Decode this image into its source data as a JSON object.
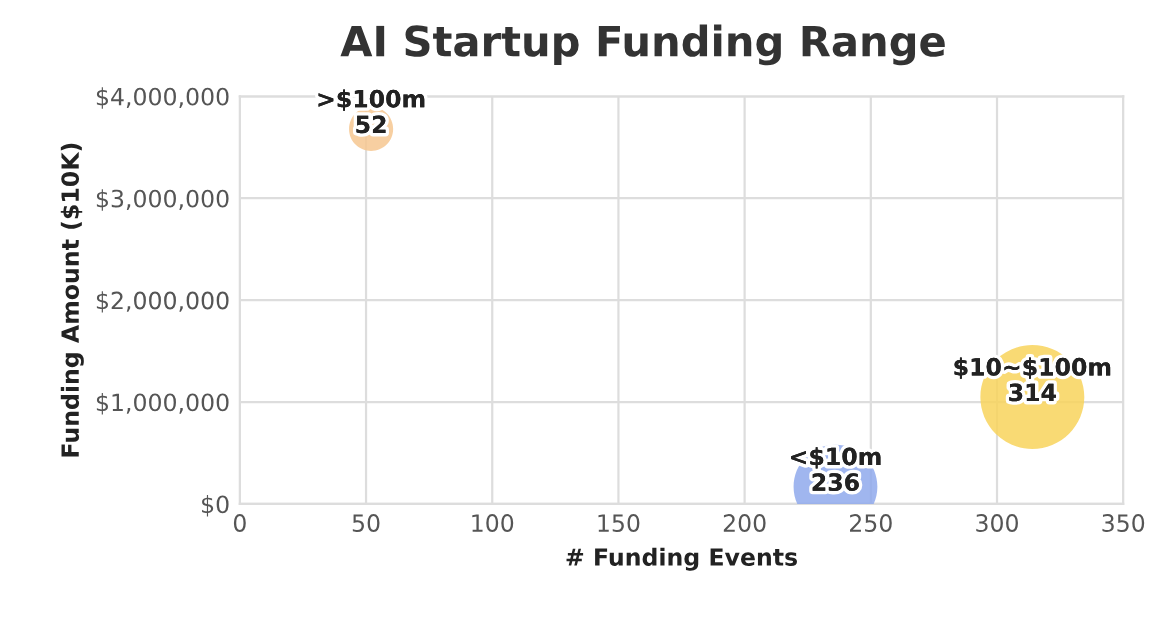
{
  "chart_data": {
    "type": "bubble",
    "title": "AI Startup Funding Range",
    "xlabel": "# Funding Events",
    "ylabel": "Funding Amount ($10K)",
    "series": [
      {
        "name": ">$100m",
        "color": "#f6c790",
        "x": [
          52
        ],
        "values": [
          3680000
        ],
        "sizes": [
          0.18
        ]
      },
      {
        "name": "<$10m",
        "color": "#8fa9ec",
        "x": [
          236
        ],
        "values": [
          170000
        ],
        "sizes": [
          0.65
        ]
      },
      {
        "name": "$10~$100m",
        "color": "#f8d35c",
        "x": [
          314
        ],
        "values": [
          1050000
        ],
        "sizes": [
          1
        ]
      }
    ],
    "annotations": [
      {
        "text": "52",
        "x": 52,
        "y": 3680000
      },
      {
        "text": "236",
        "x": 236,
        "y": 170000
      },
      {
        "text": "314",
        "x": 314,
        "y": 1050000
      }
    ],
    "xlim": [
      0,
      350
    ],
    "xticks": [
      0,
      50,
      100,
      150,
      200,
      250,
      300,
      350
    ],
    "ylim": [
      0,
      4000000
    ],
    "yticks": [
      {
        "value": 0,
        "label": "$0"
      },
      {
        "value": 1000000,
        "label": "$1,000,000"
      },
      {
        "value": 2000000,
        "label": "$2,000,000"
      },
      {
        "value": 3000000,
        "label": "$3,000,000"
      },
      {
        "value": 4000000,
        "label": "$4,000,000"
      }
    ],
    "grid": true,
    "legend": false
  }
}
